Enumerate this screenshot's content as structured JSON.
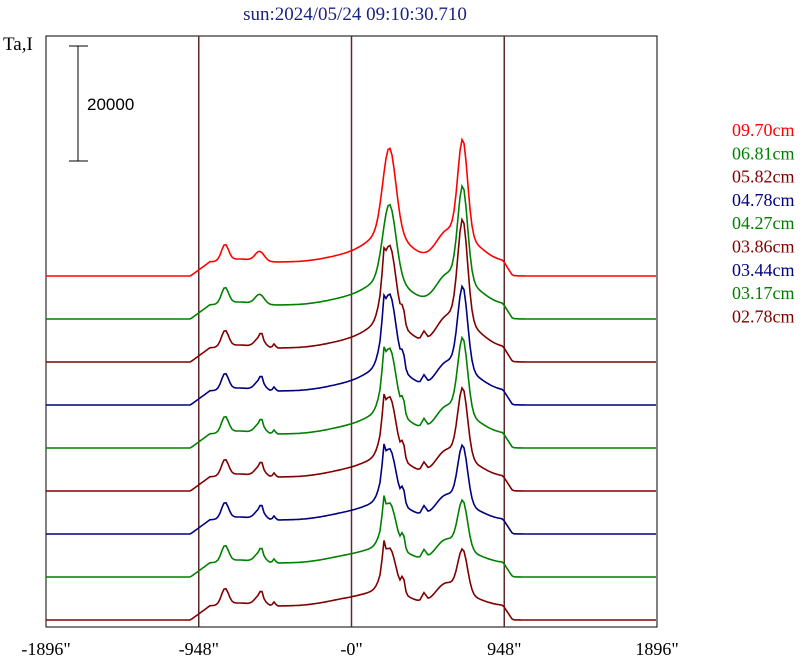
{
  "chart_data": {
    "type": "line",
    "title": "sun:2024/05/24 09:10:30.710",
    "ylabel": "Ta,I",
    "scale_bar_label": "20000",
    "scale_bar_value": 20000,
    "x_ticks": [
      -1896,
      -948,
      0,
      948,
      1896
    ],
    "x_tick_labels": [
      "-1896\"",
      "-948\"",
      "-0\"",
      "948\"",
      "1896\""
    ],
    "xlim": [
      -1896,
      1896
    ],
    "vertical_lines": [
      {
        "x": -948,
        "color": "#5a2a2a"
      },
      {
        "x": 0,
        "color": "#5a2a2a"
      },
      {
        "x": 948,
        "color": "#5a2a2a"
      }
    ],
    "series": [
      {
        "name": "09.70cm",
        "color": "#ff0000",
        "peak1": 1.0,
        "peak2": 1.0,
        "spiky": false
      },
      {
        "name": "06.81cm",
        "color": "#008000",
        "peak1": 0.88,
        "peak2": 0.97,
        "spiky": false
      },
      {
        "name": "05.82cm",
        "color": "#800000",
        "peak1": 0.9,
        "peak2": 1.05,
        "spiky": true
      },
      {
        "name": "04.78cm",
        "color": "#000080",
        "peak1": 0.85,
        "peak2": 0.85,
        "spiky": true
      },
      {
        "name": "04.27cm",
        "color": "#008000",
        "peak1": 0.75,
        "peak2": 0.78,
        "spiky": true
      },
      {
        "name": "03.86cm",
        "color": "#800000",
        "peak1": 0.7,
        "peak2": 0.72,
        "spiky": true
      },
      {
        "name": "03.44cm",
        "color": "#000080",
        "peak1": 0.62,
        "peak2": 0.6,
        "spiky": true
      },
      {
        "name": "03.17cm",
        "color": "#008000",
        "peak1": 0.52,
        "peak2": 0.5,
        "spiky": true
      },
      {
        "name": "02.78cm",
        "color": "#800000",
        "peak1": 0.5,
        "peak2": 0.45,
        "spiky": true
      }
    ]
  }
}
